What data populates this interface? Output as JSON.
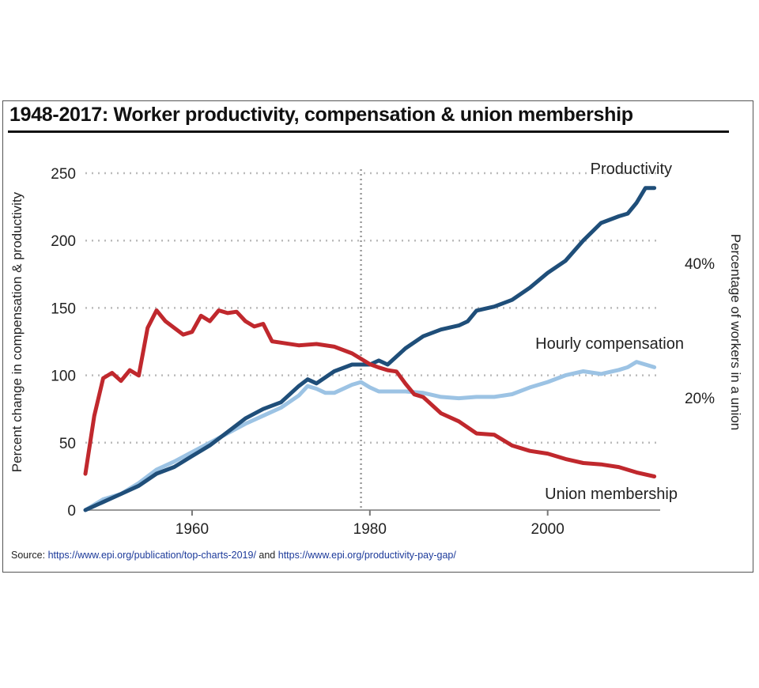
{
  "chart_data": {
    "type": "line",
    "title": "1948-2017: Worker productivity, compensation & union membership",
    "xlabel": "",
    "ylabel": "Percent change in compensation & productivity",
    "ylabel_right": "Percentage of workers in a union",
    "xlim": [
      1948,
      2012.3
    ],
    "ylim": [
      0,
      250
    ],
    "ylim_right": [
      3.3,
      53.4
    ],
    "x_ticks": [
      "1960",
      "1980",
      "2000"
    ],
    "y_ticks": [
      "0",
      "50",
      "100",
      "150",
      "200",
      "250"
    ],
    "y_ticks_right": [
      "20%",
      "40%"
    ],
    "grid": true,
    "reference_line_year": 1979,
    "series": [
      {
        "name": "Productivity",
        "axis": "left",
        "color": "#1f4e79",
        "x": [
          1948,
          1950,
          1952,
          1954,
          1956,
          1958,
          1960,
          1962,
          1964,
          1966,
          1968,
          1970,
          1972,
          1973,
          1974,
          1976,
          1978,
          1980,
          1981,
          1982,
          1984,
          1986,
          1988,
          1990,
          1991,
          1992,
          1994,
          1996,
          1998,
          2000,
          2002,
          2004,
          2006,
          2008,
          2009,
          2010,
          2011,
          2012
        ],
        "values": [
          0,
          6,
          12,
          18,
          27,
          32,
          40,
          48,
          58,
          68,
          75,
          80,
          92,
          97,
          94,
          103,
          108,
          108,
          111,
          108,
          120,
          129,
          134,
          137,
          140,
          148,
          151,
          156,
          165,
          176,
          185,
          200,
          213,
          218,
          220,
          228,
          239,
          239
        ]
      },
      {
        "name": "Hourly compensation",
        "axis": "left",
        "color": "#9cc3e4",
        "x": [
          1948,
          1950,
          1952,
          1954,
          1956,
          1958,
          1960,
          1962,
          1964,
          1966,
          1968,
          1970,
          1972,
          1973,
          1974,
          1975,
          1976,
          1978,
          1979,
          1980,
          1981,
          1982,
          1984,
          1986,
          1988,
          1990,
          1992,
          1994,
          1996,
          1998,
          2000,
          2002,
          2004,
          2006,
          2008,
          2009,
          2010,
          2011,
          2012
        ],
        "values": [
          0,
          8,
          12,
          20,
          30,
          36,
          43,
          50,
          57,
          64,
          70,
          76,
          85,
          92,
          90,
          87,
          87,
          93,
          95,
          91,
          88,
          88,
          88,
          87,
          84,
          83,
          84,
          84,
          86,
          91,
          95,
          100,
          103,
          101,
          104,
          106,
          110,
          108,
          106
        ]
      },
      {
        "name": "Union membership",
        "axis": "right",
        "color": "#c0282d",
        "x": [
          1948,
          1949,
          1950,
          1951,
          1952,
          1953,
          1954,
          1955,
          1956,
          1957,
          1958,
          1959,
          1960,
          1961,
          1962,
          1963,
          1964,
          1965,
          1966,
          1967,
          1968,
          1969,
          1970,
          1972,
          1974,
          1976,
          1978,
          1980,
          1981,
          1982,
          1983,
          1984,
          1985,
          1986,
          1988,
          1990,
          1992,
          1994,
          1996,
          1998,
          2000,
          2002,
          2004,
          2006,
          2008,
          2010,
          2012
        ],
        "values": [
          8.7,
          17.3,
          22.9,
          23.7,
          22.5,
          24.1,
          23.3,
          30.4,
          33.0,
          31.4,
          30.4,
          29.4,
          29.8,
          32.2,
          31.4,
          33.0,
          32.6,
          32.8,
          31.4,
          30.6,
          31.0,
          28.4,
          28.2,
          27.8,
          28.0,
          27.6,
          26.6,
          25.0,
          24.5,
          24.1,
          23.9,
          22.1,
          20.5,
          20.1,
          17.7,
          16.5,
          14.7,
          14.5,
          12.9,
          12.1,
          11.7,
          10.9,
          10.3,
          10.1,
          9.7,
          8.9,
          8.3
        ]
      }
    ],
    "source": {
      "prefix": "Source:",
      "link1": "https://www.epi.org/publication/top-charts-2019/",
      "joiner": "and",
      "link2": "https://www.epi.org/productivity-pay-gap/"
    }
  }
}
